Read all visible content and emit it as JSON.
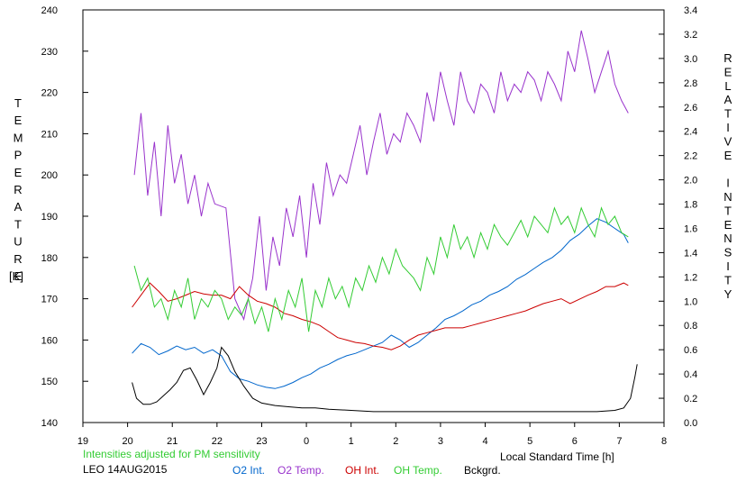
{
  "chart_data": {
    "type": "line",
    "title": "",
    "xlabel": "Local Standard Time [h]",
    "ylabel_left": "TEMPERATURE",
    "ylabel_left_unit": "[K]",
    "ylabel_right": "RELATIVE INTENSITY",
    "note": "Intensities adjusted for PM sensitivity",
    "station": "LEO 14AUG2015",
    "x_tick_values": [
      19,
      20,
      21,
      22,
      23,
      24,
      25,
      26,
      27,
      28,
      29,
      30,
      31,
      32
    ],
    "x_tick_labels": [
      "19",
      "20",
      "21",
      "22",
      "23",
      "0",
      "1",
      "2",
      "3",
      "4",
      "5",
      "6",
      "7",
      "8"
    ],
    "xlim": [
      19,
      32
    ],
    "ylim_left": [
      140,
      240
    ],
    "y_left_ticks": [
      140,
      150,
      160,
      170,
      180,
      190,
      200,
      210,
      220,
      230,
      240
    ],
    "ylim_right": [
      0.0,
      3.4
    ],
    "y_right_ticks": [
      "0.0",
      "0.2",
      "0.4",
      "0.6",
      "0.8",
      "1.0",
      "1.2",
      "1.4",
      "1.6",
      "1.8",
      "2.0",
      "2.2",
      "2.4",
      "2.6",
      "2.8",
      "3.0",
      "3.2",
      "3.4"
    ],
    "grid": false,
    "series": [
      {
        "name": "O2 Int.",
        "axis": "right",
        "color": "#0066cc",
        "x": [
          20.1,
          20.3,
          20.5,
          20.7,
          20.9,
          21.1,
          21.3,
          21.5,
          21.7,
          21.9,
          22.1,
          22.3,
          22.5,
          22.7,
          22.9,
          23.1,
          23.3,
          23.5,
          23.7,
          23.9,
          24.1,
          24.3,
          24.5,
          24.7,
          24.9,
          25.1,
          25.3,
          25.5,
          25.7,
          25.9,
          26.1,
          26.3,
          26.5,
          26.7,
          26.9,
          27.1,
          27.3,
          27.5,
          27.7,
          27.9,
          28.1,
          28.3,
          28.5,
          28.7,
          28.9,
          29.1,
          29.3,
          29.5,
          29.7,
          29.9,
          30.1,
          30.3,
          30.5,
          30.7,
          30.9,
          31.1,
          31.2
        ],
        "values": [
          0.57,
          0.65,
          0.62,
          0.56,
          0.59,
          0.63,
          0.6,
          0.62,
          0.57,
          0.6,
          0.55,
          0.42,
          0.36,
          0.34,
          0.31,
          0.29,
          0.28,
          0.3,
          0.33,
          0.37,
          0.4,
          0.45,
          0.48,
          0.52,
          0.55,
          0.57,
          0.6,
          0.63,
          0.66,
          0.72,
          0.68,
          0.62,
          0.66,
          0.72,
          0.78,
          0.85,
          0.88,
          0.92,
          0.97,
          1.0,
          1.05,
          1.08,
          1.12,
          1.18,
          1.22,
          1.27,
          1.32,
          1.36,
          1.42,
          1.5,
          1.55,
          1.62,
          1.68,
          1.65,
          1.6,
          1.55,
          1.48
        ]
      },
      {
        "name": "O2 Temp.",
        "axis": "left",
        "color": "#9933cc",
        "x": [
          20.15,
          20.3,
          20.45,
          20.6,
          20.75,
          20.9,
          21.05,
          21.2,
          21.35,
          21.5,
          21.65,
          21.8,
          21.95,
          22.2,
          22.4,
          22.6,
          22.8,
          22.95,
          23.1,
          23.25,
          23.4,
          23.55,
          23.7,
          23.85,
          24.0,
          24.15,
          24.3,
          24.45,
          24.6,
          24.75,
          24.9,
          25.05,
          25.2,
          25.35,
          25.5,
          25.65,
          25.8,
          25.95,
          26.1,
          26.25,
          26.4,
          26.55,
          26.7,
          26.85,
          27.0,
          27.15,
          27.3,
          27.45,
          27.6,
          27.75,
          27.9,
          28.05,
          28.2,
          28.35,
          28.5,
          28.65,
          28.8,
          28.95,
          29.1,
          29.25,
          29.4,
          29.55,
          29.7,
          29.85,
          30.0,
          30.15,
          30.3,
          30.45,
          30.6,
          30.75,
          30.9,
          31.05,
          31.2
        ],
        "values": [
          200,
          215,
          195,
          208,
          190,
          212,
          198,
          205,
          193,
          200,
          190,
          198,
          193,
          192,
          170,
          165,
          175,
          190,
          172,
          185,
          178,
          192,
          185,
          195,
          180,
          198,
          188,
          203,
          195,
          200,
          198,
          205,
          212,
          200,
          208,
          215,
          205,
          210,
          208,
          215,
          212,
          208,
          220,
          213,
          225,
          218,
          212,
          225,
          218,
          215,
          222,
          220,
          215,
          225,
          218,
          222,
          220,
          225,
          223,
          218,
          225,
          222,
          218,
          230,
          225,
          235,
          228,
          220,
          225,
          230,
          222,
          218,
          215
        ]
      },
      {
        "name": "OH Int.",
        "axis": "right",
        "color": "#cc0000",
        "x": [
          20.1,
          20.3,
          20.5,
          20.7,
          20.9,
          21.1,
          21.3,
          21.5,
          21.7,
          21.9,
          22.1,
          22.3,
          22.5,
          22.7,
          22.9,
          23.1,
          23.3,
          23.5,
          23.7,
          23.9,
          24.1,
          24.3,
          24.5,
          24.7,
          24.9,
          25.1,
          25.3,
          25.5,
          25.7,
          25.9,
          26.1,
          26.3,
          26.5,
          26.7,
          26.9,
          27.1,
          27.3,
          27.5,
          27.7,
          27.9,
          28.1,
          28.3,
          28.5,
          28.7,
          28.9,
          29.1,
          29.3,
          29.5,
          29.7,
          29.9,
          30.3,
          30.5,
          30.7,
          30.9,
          31.1,
          31.2
        ],
        "values": [
          0.95,
          1.05,
          1.15,
          1.08,
          1.0,
          1.02,
          1.05,
          1.08,
          1.06,
          1.05,
          1.05,
          1.02,
          1.12,
          1.05,
          1.0,
          0.98,
          0.95,
          0.9,
          0.88,
          0.85,
          0.83,
          0.8,
          0.75,
          0.7,
          0.68,
          0.66,
          0.65,
          0.63,
          0.62,
          0.6,
          0.63,
          0.68,
          0.72,
          0.74,
          0.76,
          0.78,
          0.78,
          0.78,
          0.8,
          0.82,
          0.84,
          0.86,
          0.88,
          0.9,
          0.92,
          0.95,
          0.98,
          1.0,
          1.02,
          0.98,
          1.05,
          1.08,
          1.12,
          1.12,
          1.15,
          1.13
        ]
      },
      {
        "name": "OH Temp.",
        "axis": "left",
        "color": "#33cc33",
        "x": [
          20.15,
          20.3,
          20.45,
          20.6,
          20.75,
          20.9,
          21.05,
          21.2,
          21.35,
          21.5,
          21.65,
          21.8,
          21.95,
          22.1,
          22.25,
          22.4,
          22.55,
          22.7,
          22.85,
          23.0,
          23.15,
          23.3,
          23.45,
          23.6,
          23.75,
          23.9,
          24.05,
          24.2,
          24.35,
          24.5,
          24.65,
          24.8,
          24.95,
          25.1,
          25.25,
          25.4,
          25.55,
          25.7,
          25.85,
          26.0,
          26.15,
          26.4,
          26.55,
          26.7,
          26.85,
          27.0,
          27.15,
          27.3,
          27.45,
          27.6,
          27.75,
          27.9,
          28.05,
          28.2,
          28.35,
          28.5,
          28.65,
          28.8,
          28.95,
          29.1,
          29.25,
          29.4,
          29.55,
          29.7,
          29.85,
          30.0,
          30.15,
          30.3,
          30.45,
          30.6,
          30.75,
          30.9,
          31.05,
          31.2
        ],
        "values": [
          178,
          172,
          175,
          168,
          170,
          165,
          172,
          168,
          175,
          165,
          170,
          168,
          172,
          170,
          165,
          168,
          166,
          170,
          164,
          168,
          162,
          170,
          165,
          172,
          168,
          175,
          162,
          172,
          168,
          175,
          170,
          173,
          168,
          175,
          172,
          178,
          174,
          180,
          176,
          182,
          178,
          175,
          172,
          180,
          176,
          185,
          180,
          188,
          182,
          185,
          180,
          186,
          182,
          188,
          185,
          183,
          186,
          189,
          185,
          190,
          188,
          186,
          192,
          188,
          190,
          186,
          192,
          188,
          185,
          192,
          188,
          190,
          186,
          185
        ]
      },
      {
        "name": "Bckgrd.",
        "axis": "right",
        "color": "#000000",
        "x": [
          20.1,
          20.2,
          20.35,
          20.5,
          20.65,
          20.8,
          20.95,
          21.1,
          21.25,
          21.4,
          21.55,
          21.7,
          21.85,
          22.0,
          22.1,
          22.25,
          22.4,
          22.6,
          22.8,
          23.0,
          23.3,
          23.6,
          23.9,
          24.2,
          24.5,
          25.0,
          25.5,
          26.0,
          26.5,
          27.0,
          27.5,
          28.0,
          28.5,
          29.0,
          29.5,
          30.0,
          30.5,
          30.9,
          31.1,
          31.25,
          31.35,
          31.4
        ],
        "values": [
          0.33,
          0.2,
          0.15,
          0.15,
          0.17,
          0.22,
          0.27,
          0.33,
          0.43,
          0.45,
          0.35,
          0.23,
          0.33,
          0.45,
          0.62,
          0.55,
          0.42,
          0.3,
          0.2,
          0.16,
          0.14,
          0.13,
          0.12,
          0.12,
          0.11,
          0.1,
          0.09,
          0.09,
          0.09,
          0.09,
          0.09,
          0.09,
          0.09,
          0.09,
          0.09,
          0.09,
          0.09,
          0.1,
          0.12,
          0.2,
          0.38,
          0.48
        ]
      }
    ]
  }
}
